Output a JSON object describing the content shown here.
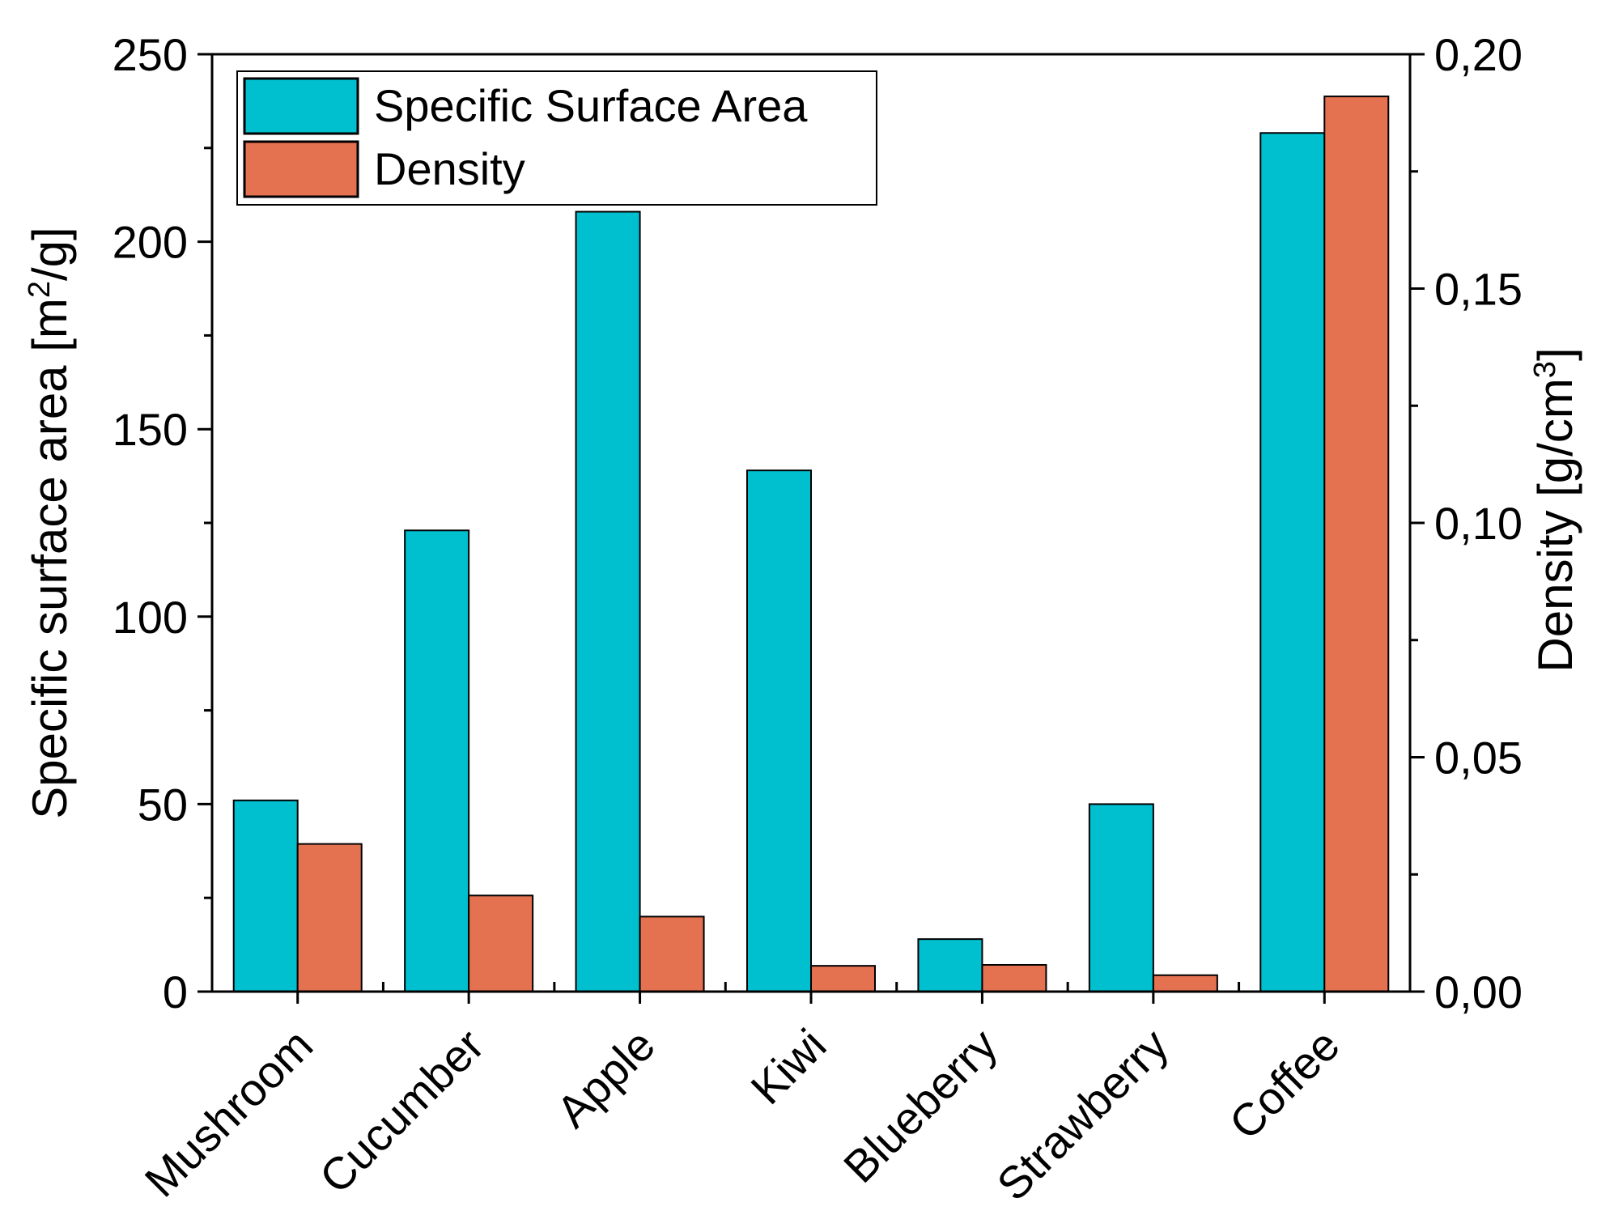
{
  "chart_data": {
    "type": "bar",
    "categories": [
      "Mushroom",
      "Cucumber",
      "Apple",
      "Kiwi",
      "Blueberry",
      "Strawberry",
      "Coffee"
    ],
    "series": [
      {
        "name": "Specific Surface Area",
        "axis": "left",
        "color": "#00BFCF",
        "values": [
          51,
          123,
          208,
          139,
          14,
          50,
          229
        ]
      },
      {
        "name": "Density",
        "axis": "right",
        "color": "#E47150",
        "values": [
          0.0315,
          0.0205,
          0.016,
          0.0055,
          0.0057,
          0.0035,
          0.191
        ]
      }
    ],
    "ylabel_left": {
      "pre": "Specific surface area [m",
      "sup": "2",
      "post": "/g]"
    },
    "ylabel_right": {
      "pre": "Density [g/cm",
      "sup": "3",
      "post": "]"
    },
    "ylim_left": [
      0,
      250
    ],
    "ylim_right": [
      0,
      0.2
    ],
    "left_ticks": [
      "0",
      "50",
      "100",
      "150",
      "200",
      "250"
    ],
    "right_ticks": [
      "0,00",
      "0,05",
      "0,10",
      "0,15",
      "0,20"
    ],
    "grid": false,
    "legend_position": "top-left"
  }
}
